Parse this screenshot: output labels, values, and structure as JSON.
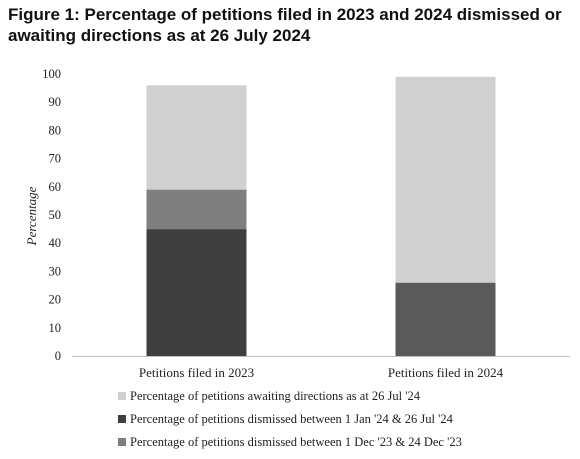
{
  "chart_data": {
    "type": "bar",
    "stacked": true,
    "title": "Figure 1: Percentage of petitions filed in 2023 and 2024 dismissed or awaiting directions as at 26 July 2024",
    "ylabel": "Percentage",
    "xlabel": "",
    "ylim": [
      0,
      100
    ],
    "yticks": [
      "0",
      "10",
      "20",
      "30",
      "40",
      "50",
      "60",
      "70",
      "80",
      "90",
      "100"
    ],
    "grid": false,
    "categories": [
      "Petitions filed in 2023",
      "Petitions filed in 2024"
    ],
    "series": [
      {
        "name": "Percentage of petitions dismissed between 1 Jan '24 & 26 Jul '24",
        "values": [
          45,
          0
        ],
        "color": "#3f3f3f"
      },
      {
        "name": "Percentage of petitions dismissed between 1 Dec '23 & 24 Dec '23",
        "values": [
          14,
          26
        ],
        "color": "#7f7f7f"
      },
      {
        "name": "Percentage of petitions awaiting directions as at 26 Jul '24",
        "values": [
          37,
          73
        ],
        "color": "#d0d0d0"
      }
    ],
    "bar_colors_by_category": [
      [
        "#3f3f3f",
        "#7f7f7f",
        "#d0d0d0"
      ],
      [
        "#5a5a5a",
        "#5a5a5a",
        "#d0d0d0"
      ]
    ],
    "legend": {
      "placement": "bottom-left",
      "order": [
        2,
        0,
        1
      ]
    }
  }
}
